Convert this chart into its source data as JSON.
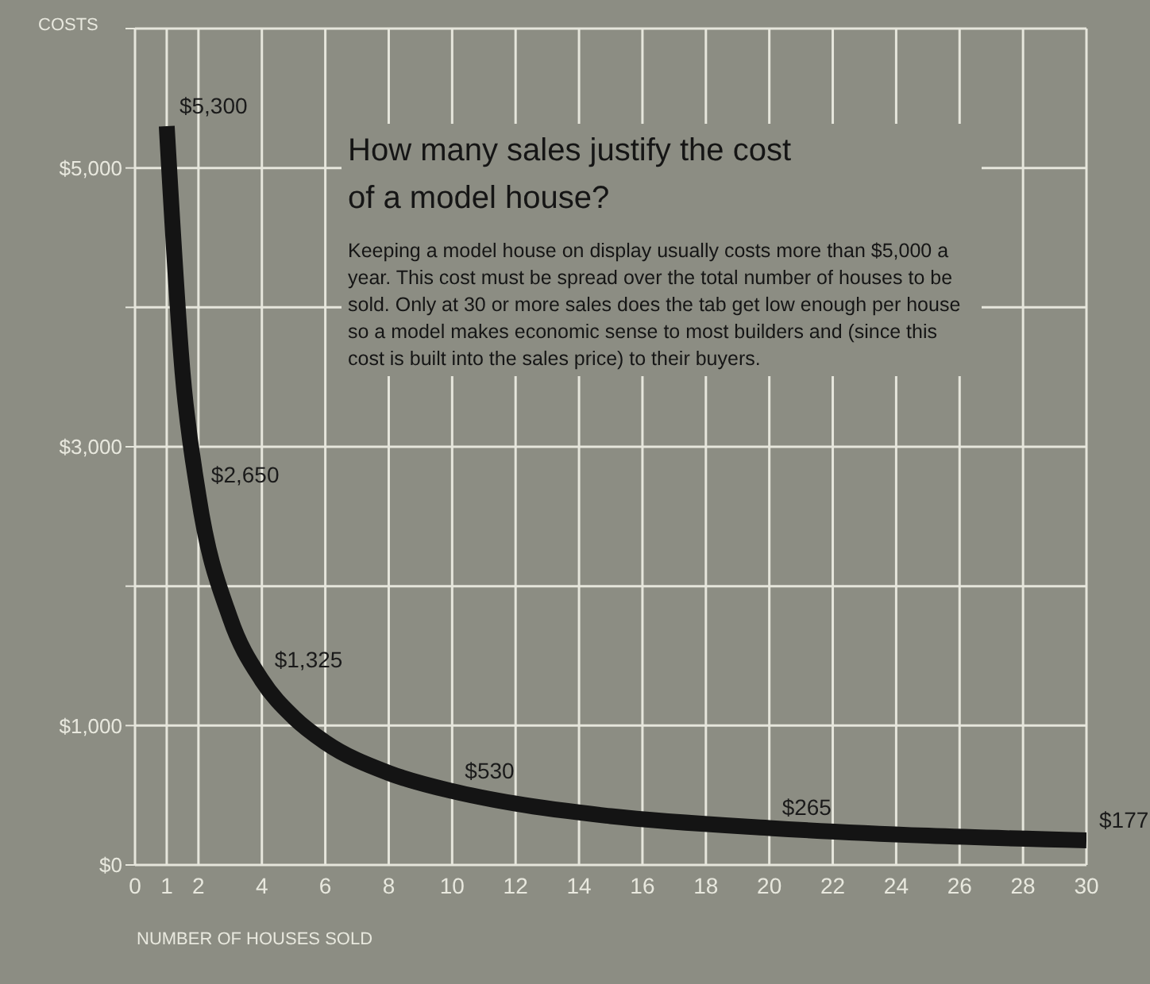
{
  "chart_data": {
    "type": "line",
    "title": "How many sales justify the cost of a model house?",
    "subtitle": "Keeping a model house on display usually costs more than $5,000 a year. This cost must be spread over the total number of houses to be sold. Only at 30 or more sales does the tab get low enough per house so a model makes economic sense to most builders and (since this cost is built into the sales price) to their buyers.",
    "xlabel": "NUMBER OF HOUSES SOLD",
    "ylabel": "COSTS",
    "x": [
      1,
      1.5,
      2,
      3,
      4,
      5,
      6,
      8,
      10,
      12,
      15,
      20,
      25,
      30
    ],
    "series": [
      {
        "color": "#141414",
        "values": [
          5300,
          3530,
          2650,
          1770,
          1325,
          1060,
          880,
          660,
          530,
          440,
          350,
          265,
          210,
          177
        ],
        "value_labels": [
          "$5,300",
          null,
          "$2,650",
          null,
          "$1,325",
          null,
          null,
          null,
          "$530",
          null,
          null,
          "$265",
          null,
          "$177"
        ]
      }
    ],
    "xlim": [
      0,
      30
    ],
    "xticks": [
      0,
      1,
      2,
      4,
      6,
      8,
      10,
      12,
      14,
      16,
      18,
      20,
      22,
      24,
      26,
      28,
      30
    ],
    "ylim": [
      0,
      6000
    ],
    "yticks": [
      {
        "value": 0,
        "label": "$0"
      },
      {
        "value": 1000,
        "label": "$1,000"
      },
      {
        "value": 2000,
        "label": null
      },
      {
        "value": 3000,
        "label": "$3,000"
      },
      {
        "value": 4000,
        "label": null
      },
      {
        "value": 5000,
        "label": "$5,000"
      },
      {
        "value": 6000,
        "label": null
      }
    ],
    "grid": true,
    "marker": "none",
    "line_style": "solid"
  }
}
